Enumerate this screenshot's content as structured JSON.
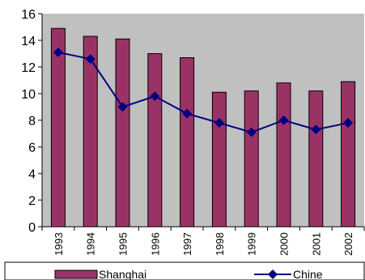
{
  "chart_data": {
    "type": "bar",
    "categories": [
      "1993",
      "1994",
      "1995",
      "1996",
      "1997",
      "1998",
      "1999",
      "2000",
      "2001",
      "2002"
    ],
    "series": [
      {
        "name": "Shanghai",
        "type": "bar",
        "color": "#993366",
        "values": [
          14.9,
          14.3,
          14.1,
          13.0,
          12.7,
          10.1,
          10.2,
          10.8,
          10.2,
          10.9
        ]
      },
      {
        "name": "Chine",
        "type": "line",
        "color": "#000080",
        "values": [
          13.1,
          12.6,
          9.0,
          9.8,
          8.5,
          7.8,
          7.1,
          8.0,
          7.3,
          7.8
        ]
      }
    ],
    "yticks": [
      "0",
      "2",
      "4",
      "6",
      "8",
      "10",
      "12",
      "14",
      "16"
    ],
    "ylim": [
      0,
      16
    ],
    "grid": false,
    "plot_background": "#c0c0c0",
    "legend_position": "bottom"
  }
}
